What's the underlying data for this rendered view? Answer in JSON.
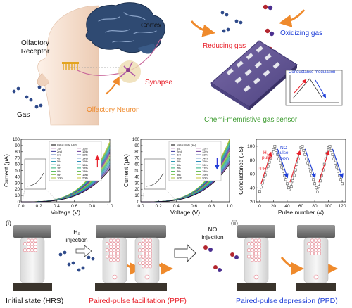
{
  "top_left": {
    "cortex": "Cortex",
    "olfactory_receptor": [
      "Olfactory",
      "Receptor"
    ],
    "synapse": "Synapse",
    "gas": "Gas",
    "olfactory_neuron": "Olfactory Neuron"
  },
  "top_right": {
    "reducing_gas": "Reducing gas",
    "oxidizing_gas": "Oxidizing gas",
    "conductance_modulation": "Conductance modulation",
    "sensor_label": "Chemi-memristive gas sensor"
  },
  "chart_data": [
    {
      "type": "line",
      "xlabel": "Voltage (V)",
      "ylabel": "Current (μA)",
      "xlim": [
        0.0,
        1.0
      ],
      "ylim": [
        0,
        100
      ],
      "x_ticks": [
        "0.0",
        "0.2",
        "0.4",
        "0.6",
        "0.8",
        "1.0"
      ],
      "y_ticks": [
        "0",
        "10",
        "20",
        "30",
        "40",
        "50",
        "60",
        "70",
        "80",
        "90",
        "100"
      ],
      "legend": [
        "Initial state HRS",
        "1st",
        "2nd",
        "3rd",
        "4th",
        "5th",
        "6th",
        "7th",
        "8th",
        "9th",
        "10th",
        "11th",
        "12th",
        "13th",
        "14th",
        "15th",
        "16th",
        "17th",
        "18th",
        "19th",
        "20th"
      ],
      "end_current_range": [
        52,
        96
      ],
      "arrow_direction": "up",
      "arrow_color": "#e8202a",
      "colors": [
        "#000000",
        "#7f2a8a",
        "#3b3b9e",
        "#2c5aa8",
        "#2f7fb8",
        "#2e9bb5",
        "#2cac9a",
        "#2fb37a",
        "#49b64f",
        "#7bbd3e",
        "#a9c237",
        "#9a3b8c",
        "#6c3d98",
        "#3f4ca0",
        "#2f6eb0",
        "#2e8cb9",
        "#2ea8a8",
        "#30b283",
        "#58b64a",
        "#8fbe3b",
        "#c7c63a"
      ]
    },
    {
      "type": "line",
      "xlabel": "Voltage (V)",
      "ylabel": "Current (μA)",
      "xlim": [
        0.0,
        1.0
      ],
      "ylim": [
        0,
        100
      ],
      "x_ticks": [
        "0.0",
        "0.2",
        "0.4",
        "0.6",
        "0.8",
        "1.0"
      ],
      "y_ticks": [
        "0",
        "10",
        "20",
        "30",
        "40",
        "50",
        "60",
        "70",
        "80",
        "90",
        "100"
      ],
      "legend": [
        "Initial state (H₂)",
        "1st",
        "2nd",
        "3rd",
        "4th",
        "5th",
        "6th",
        "7th",
        "8th",
        "9th",
        "10th",
        "11th",
        "12th",
        "13th",
        "14th",
        "15th",
        "16th",
        "17th",
        "18th",
        "19th",
        "20th"
      ],
      "end_current_range": [
        60,
        100
      ],
      "arrow_direction": "down",
      "arrow_color": "#2a2fd6",
      "colors": [
        "#000000",
        "#7f2a8a",
        "#3b3b9e",
        "#2c5aa8",
        "#2f7fb8",
        "#2e9bb5",
        "#2cac9a",
        "#2fb37a",
        "#49b64f",
        "#7bbd3e",
        "#a9c237",
        "#9a3b8c",
        "#6c3d98",
        "#3f4ca0",
        "#2f6eb0",
        "#2e8cb9",
        "#2ea8a8",
        "#30b283",
        "#58b64a",
        "#8fbe3b",
        "#c7c63a"
      ]
    },
    {
      "type": "scatter",
      "xlabel": "Pulse number (#)",
      "ylabel": "Conductance (μS)",
      "xlim": [
        -5,
        125
      ],
      "ylim": [
        20,
        110
      ],
      "x_ticks": [
        "0",
        "20",
        "40",
        "60",
        "80",
        "100",
        "120"
      ],
      "y_ticks": [
        "20",
        "40",
        "60",
        "80",
        "100"
      ],
      "annotations": {
        "h2_pulse": "H₂ pulse",
        "ppf": "PPF",
        "no_pulse": "NO pulse",
        "ppd": "PPD"
      },
      "x": [
        0,
        2,
        4,
        6,
        8,
        10,
        12,
        14,
        16,
        18,
        20,
        22,
        24,
        26,
        28,
        30,
        32,
        34,
        36,
        38,
        40,
        42,
        44,
        46,
        48,
        50,
        52,
        54,
        56,
        58,
        60,
        62,
        64,
        66,
        68,
        70,
        72,
        74,
        76,
        78,
        80,
        82,
        84,
        86,
        88,
        90,
        92,
        94,
        96,
        98,
        100,
        102,
        104,
        106,
        108,
        110,
        112,
        114,
        116,
        118,
        120
      ],
      "y": [
        35,
        41,
        47,
        53,
        59,
        65,
        71,
        77,
        83,
        89,
        95,
        100,
        94,
        88,
        82,
        76,
        70,
        64,
        58,
        52,
        46,
        40,
        34,
        42,
        50,
        58,
        66,
        74,
        82,
        90,
        98,
        100,
        94,
        88,
        82,
        76,
        70,
        64,
        58,
        52,
        46,
        40,
        34,
        42,
        50,
        58,
        66,
        74,
        82,
        90,
        98,
        100,
        94,
        88,
        82,
        76,
        70,
        64,
        58,
        52,
        46
      ]
    }
  ],
  "bottom": {
    "panel_i": "(i)",
    "panel_ii": "(ii)",
    "h2_injection": [
      "H₂",
      "injection"
    ],
    "no_injection": [
      "NO",
      "injection"
    ],
    "initial_state": "Initial state (HRS)",
    "ppf": "Paired-pulse facilitation (PPF)",
    "ppd": "Paired-pulse depression (PPD)"
  },
  "colors": {
    "red": "#e8202a",
    "blue": "#1f3fd8",
    "orange": "#ef8a2c",
    "green": "#3c9b2f",
    "skin": "#f5d9c4",
    "brain": "#2f4a72",
    "sensor": "#6b5d9a"
  }
}
